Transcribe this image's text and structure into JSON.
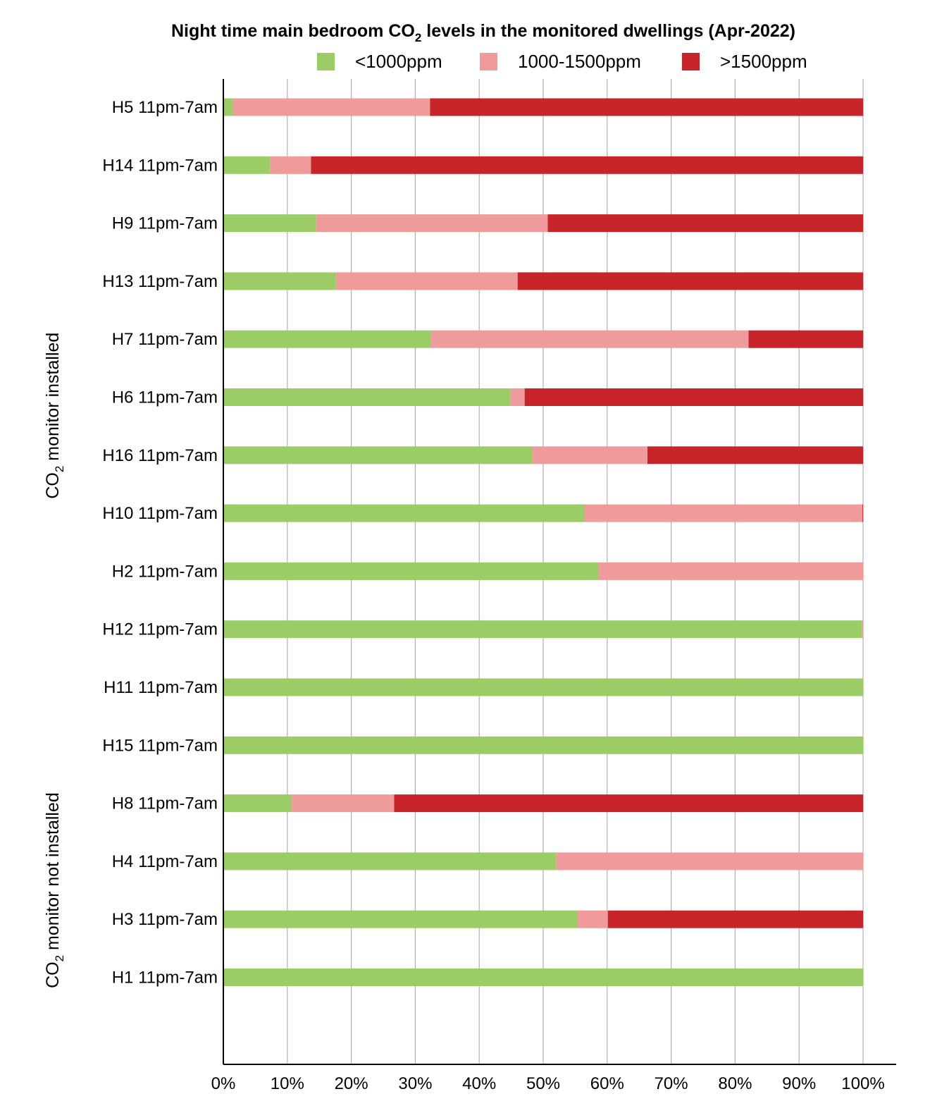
{
  "chart_data": {
    "type": "bar",
    "orientation": "horizontal",
    "stacked": true,
    "percent": true,
    "title": {
      "prefix": "Night time main bedroom CO",
      "sub": "2",
      "suffix": " levels in the monitored dwellings (Apr-2022)"
    },
    "xlim": [
      0,
      100
    ],
    "x_ticks": [
      "0%",
      "10%",
      "20%",
      "30%",
      "40%",
      "50%",
      "60%",
      "70%",
      "80%",
      "90%",
      "100%"
    ],
    "grid": "vertical",
    "legend_position": "top",
    "series": [
      {
        "name": "<1000ppm",
        "color": "#9bcc66"
      },
      {
        "name": "1000-1500ppm",
        "color": "#ef9b9b"
      },
      {
        "name": ">1500ppm",
        "color": "#c8252b"
      }
    ],
    "groups": [
      {
        "label": {
          "prefix": "CO",
          "sub": "2",
          "suffix": " monitor installed"
        },
        "categories": [
          {
            "name": "H5 11pm-7am",
            "values": [
              1.5,
              30.8,
              67.7
            ]
          },
          {
            "name": "H14 11pm-7am",
            "values": [
              7.3,
              6.4,
              86.3
            ]
          },
          {
            "name": "H9 11pm-7am",
            "values": [
              14.5,
              36.2,
              49.3
            ]
          },
          {
            "name": "H13 11pm-7am",
            "values": [
              17.6,
              28.4,
              54.0
            ]
          },
          {
            "name": "H7 11pm-7am",
            "values": [
              32.5,
              49.6,
              17.9
            ]
          },
          {
            "name": "H6 11pm-7am",
            "values": [
              44.9,
              2.2,
              52.9
            ]
          },
          {
            "name": "H16 11pm-7am",
            "values": [
              48.3,
              18.0,
              33.7
            ]
          },
          {
            "name": "H10 11pm-7am",
            "values": [
              56.5,
              43.4,
              0.1
            ]
          },
          {
            "name": "H2 11pm-7am",
            "values": [
              58.7,
              41.3,
              0
            ]
          },
          {
            "name": "H12 11pm-7am",
            "values": [
              99.8,
              0.2,
              0
            ]
          },
          {
            "name": "H11 11pm-7am",
            "values": [
              100,
              0,
              0
            ]
          },
          {
            "name": "H15 11pm-7am",
            "values": [
              100,
              0,
              0
            ]
          }
        ]
      },
      {
        "label": {
          "prefix": "CO",
          "sub": "2",
          "suffix": " monitor not installed"
        },
        "categories": [
          {
            "name": "H8 11pm-7am",
            "values": [
              10.7,
              16.0,
              73.3
            ]
          },
          {
            "name": "H4 11pm-7am",
            "values": [
              52.0,
              48.0,
              0
            ]
          },
          {
            "name": "H3 11pm-7am",
            "values": [
              55.4,
              4.7,
              39.9
            ]
          },
          {
            "name": "H1 11pm-7am",
            "values": [
              100,
              0,
              0
            ]
          }
        ]
      }
    ]
  }
}
